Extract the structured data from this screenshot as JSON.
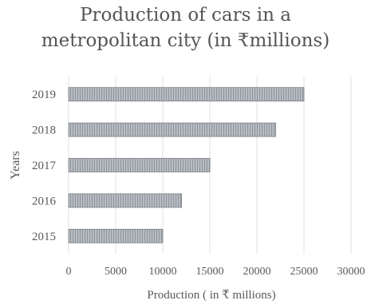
{
  "chart_data": {
    "type": "bar",
    "orientation": "horizontal",
    "title_lines": [
      "Production of cars in a",
      "metropolitan city (in ₹millions)"
    ],
    "xlabel": "Production ( in ₹ millions)",
    "ylabel": "Years",
    "categories": [
      "2015",
      "2016",
      "2017",
      "2018",
      "2019"
    ],
    "values": [
      10000,
      12000,
      15000,
      22000,
      25000
    ],
    "xlim": [
      0,
      30000
    ],
    "xticks": [
      "0",
      "5000",
      "10000",
      "15000",
      "20000",
      "25000",
      "30000"
    ],
    "tick_values": [
      0,
      5000,
      10000,
      15000,
      20000,
      25000,
      30000
    ],
    "grid": "vertical",
    "legend": "none",
    "colors": {
      "bar_fill": "#b8bdc4",
      "bar_hatch": "#8f949b",
      "bar_stroke": "#7a7e84",
      "grid": "#e2e2e2",
      "text": "#595959"
    }
  }
}
